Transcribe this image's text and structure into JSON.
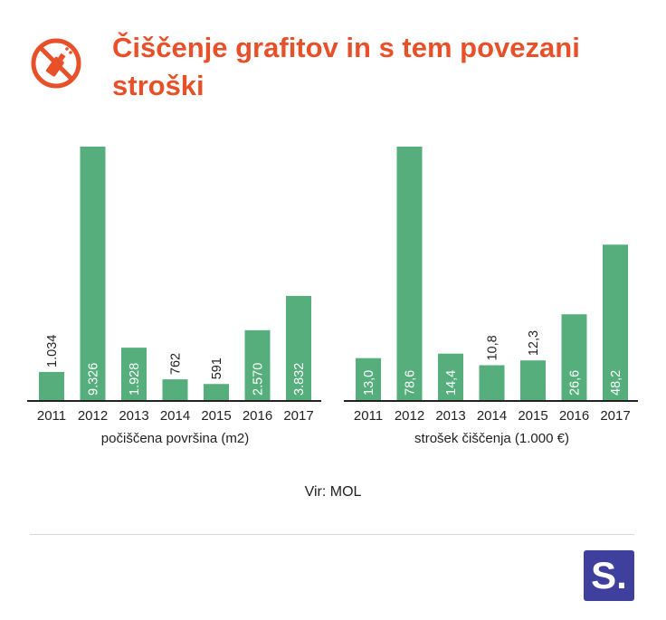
{
  "header": {
    "title": "Čiščenje grafitov in s tem povezani stroški",
    "icon": "no-spray-can-icon",
    "accent_color": "#e8502a"
  },
  "chart_data": [
    {
      "type": "bar",
      "categories": [
        "2011",
        "2012",
        "2013",
        "2014",
        "2015",
        "2016",
        "2017"
      ],
      "values": [
        1034,
        9326,
        1928,
        762,
        591,
        2570,
        3832
      ],
      "value_labels": [
        "1.034",
        "9.326",
        "1.928",
        "762",
        "591",
        "2.570",
        "3.832"
      ],
      "xlabel": "počiščena površina (m2)",
      "ylim": [
        0,
        9326
      ],
      "bar_color": "#55ae7c",
      "grid": false
    },
    {
      "type": "bar",
      "categories": [
        "2011",
        "2012",
        "2013",
        "2014",
        "2015",
        "2016",
        "2017"
      ],
      "values": [
        13.0,
        78.6,
        14.4,
        10.8,
        12.3,
        26.6,
        48.2
      ],
      "value_labels": [
        "13,0",
        "78,6",
        "14,4",
        "10,8",
        "12,3",
        "26,6",
        "48,2"
      ],
      "xlabel": "strošek čiščenja (1.000 €)",
      "ylim": [
        0,
        78.6
      ],
      "bar_color": "#55ae7c",
      "grid": false
    }
  ],
  "footer": {
    "source": "Vir: MOL",
    "brand_logo": "S.",
    "brand_color": "#3f3f9e"
  }
}
